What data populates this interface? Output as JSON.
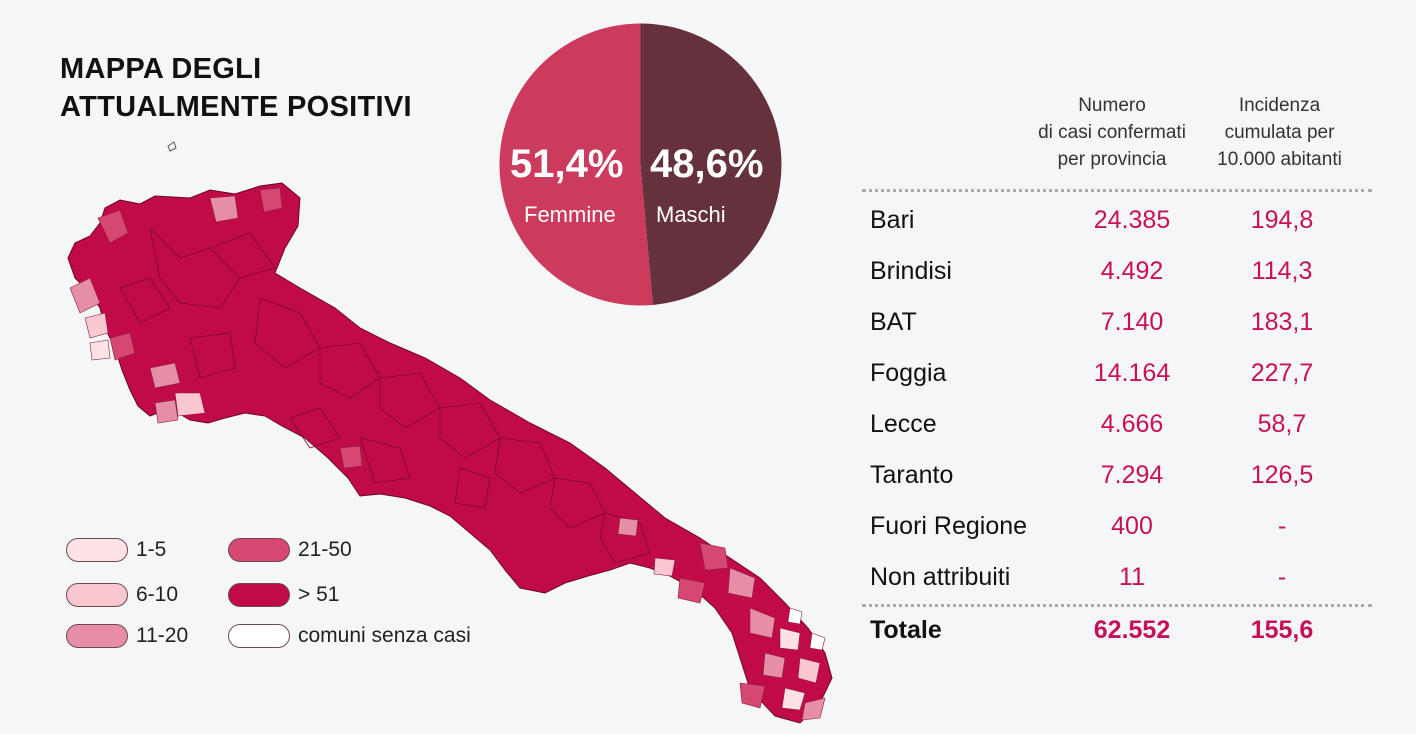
{
  "title": {
    "line1": "MAPPA DEGLI",
    "line2": "ATTUALMENTE POSITIVI"
  },
  "pie": {
    "slices": [
      {
        "pct": "51,4%",
        "label": "Femmine",
        "value": 51.4,
        "color": "#cc3a5e"
      },
      {
        "pct": "48,6%",
        "label": "Maschi",
        "value": 48.6,
        "color": "#65313c"
      }
    ]
  },
  "legend": [
    {
      "label": "1-5",
      "color": "#fde3e6"
    },
    {
      "label": "6-10",
      "color": "#f8c7cf"
    },
    {
      "label": "11-20",
      "color": "#e58ea5"
    },
    {
      "label": "21-50",
      "color": "#d44872"
    },
    {
      "label": "> 51",
      "color": "#c10b48"
    },
    {
      "label": "comuni senza casi",
      "color": "#ffffff"
    }
  ],
  "table": {
    "col1_header": [
      "Numero",
      "di casi confermati",
      "per provincia"
    ],
    "col2_header": [
      "Incidenza",
      "cumulata per",
      "10.000 abitanti"
    ],
    "rows": [
      {
        "name": "Bari",
        "cases": "24.385",
        "incidence": "194,8"
      },
      {
        "name": "Brindisi",
        "cases": "4.492",
        "incidence": "114,3"
      },
      {
        "name": "BAT",
        "cases": "7.140",
        "incidence": "183,1"
      },
      {
        "name": "Foggia",
        "cases": "14.164",
        "incidence": "227,7"
      },
      {
        "name": "Lecce",
        "cases": "4.666",
        "incidence": "58,7"
      },
      {
        "name": "Taranto",
        "cases": "7.294",
        "incidence": "126,5"
      },
      {
        "name": "Fuori Regione",
        "cases": "400",
        "incidence": "-"
      },
      {
        "name": "Non attribuiti",
        "cases": "11",
        "incidence": "-"
      }
    ],
    "total": {
      "name": "Totale",
      "cases": "62.552",
      "incidence": "155,6"
    }
  }
}
